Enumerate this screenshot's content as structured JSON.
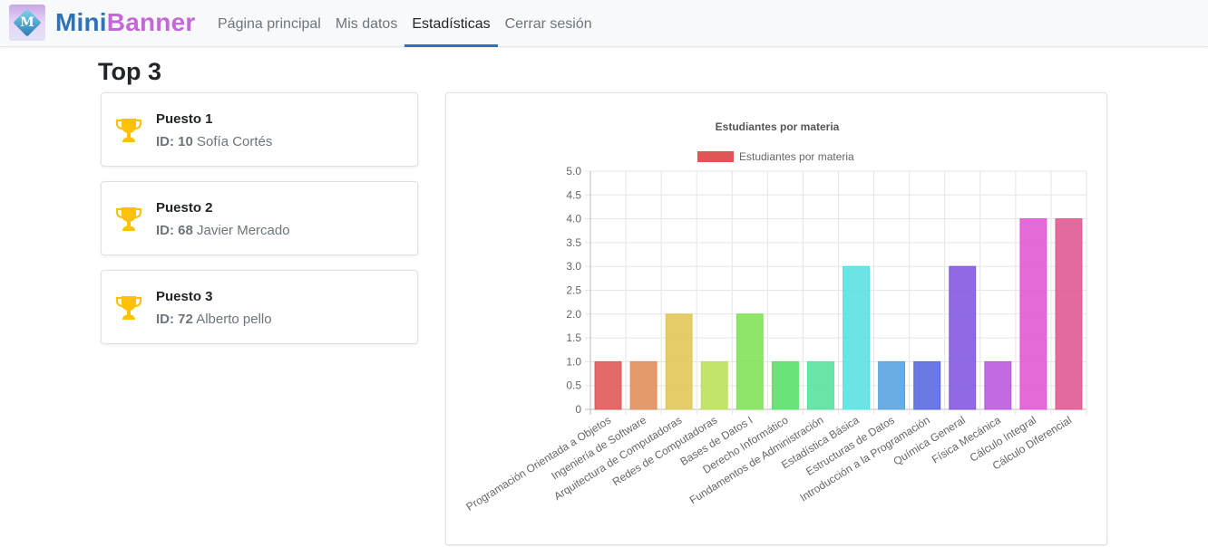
{
  "brand": {
    "part1": "Mini",
    "part2": "Banner",
    "logo_letter": "M"
  },
  "nav": [
    {
      "label": "Página principal",
      "active": false
    },
    {
      "label": "Mis datos",
      "active": false
    },
    {
      "label": "Estadísticas",
      "active": true
    },
    {
      "label": "Cerrar sesión",
      "active": false
    }
  ],
  "page_title": "Top 3",
  "ranking": [
    {
      "title": "Puesto 1",
      "id_label": "ID:",
      "id": "10",
      "name": "Sofía Cortés"
    },
    {
      "title": "Puesto 2",
      "id_label": "ID:",
      "id": "68",
      "name": "Javier Mercado"
    },
    {
      "title": "Puesto 3",
      "id_label": "ID:",
      "id": "72",
      "name": "Alberto pello"
    }
  ],
  "icons": {
    "ranking": "trophy-icon"
  },
  "colors": {
    "trophy": "#ffc107",
    "accent": "#2e73b8",
    "brand_secondary": "#c468d9"
  },
  "chart_data": {
    "type": "bar",
    "title": "Estudiantes por materia",
    "legend": {
      "label": "Estudiantes por materia",
      "position": "top",
      "color": "#e05555"
    },
    "xlabel": "",
    "ylabel": "",
    "ylim": [
      0,
      5
    ],
    "yticks": [
      "5.0",
      "4.5",
      "4.0",
      "3.5",
      "3.0",
      "2.5",
      "2.0",
      "1.5",
      "1.0",
      "0.5",
      "0"
    ],
    "grid": true,
    "categories": [
      "Programación Orientada a Objetos",
      "Ingeniería de Software",
      "Arquitectura de Computadoras",
      "Redes de Computadoras",
      "Bases de Datos I",
      "Derecho Informático",
      "Fundamentos de Administración",
      "Estadística Básica",
      "Estructuras de Datos",
      "Introducción a la Programación",
      "Química General",
      "Física Mecánica",
      "Cálculo Integral",
      "Cálculo Diferencial"
    ],
    "series": [
      {
        "name": "Estudiantes por materia",
        "values": [
          1,
          1,
          2,
          1,
          2,
          1,
          1,
          3,
          1,
          1,
          3,
          1,
          4,
          4
        ]
      }
    ],
    "bar_colors": [
      "#e05555",
      "#e08c55",
      "#e0c555",
      "#b9e055",
      "#7fe055",
      "#55e066",
      "#55e09d",
      "#55e0e0",
      "#55a0e0",
      "#5566e0",
      "#7f55e0",
      "#b955e0",
      "#e055d4",
      "#e05590"
    ]
  }
}
